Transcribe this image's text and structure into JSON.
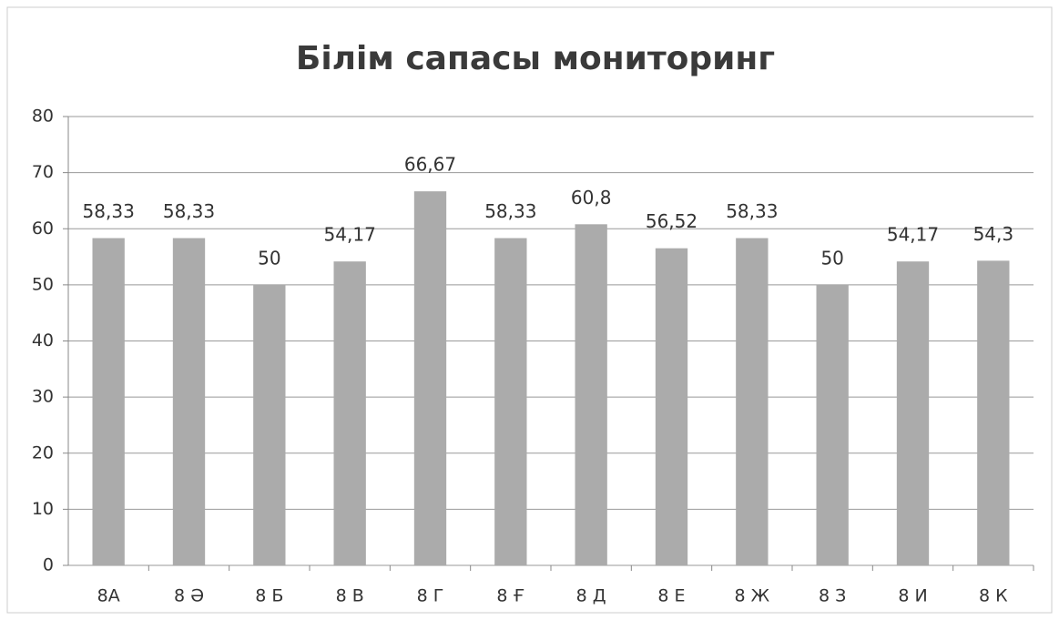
{
  "chart_data": {
    "type": "bar",
    "title": "Білім сапасы мониторинг",
    "categories": [
      "8А",
      "8 Ә",
      "8 Б",
      "8 В",
      "8 Г",
      "8 Ғ",
      "8 Д",
      "8 Е",
      "8 Ж",
      "8 З",
      "8 И",
      "8 К"
    ],
    "values": [
      58.33,
      58.33,
      50,
      54.17,
      66.67,
      58.33,
      60.8,
      56.52,
      58.33,
      50,
      54.17,
      54.3
    ],
    "value_labels": [
      "58,33",
      "58,33",
      "50",
      "54,17",
      "66,67",
      "58,33",
      "60,8",
      "56,52",
      "58,33",
      "50",
      "54,17",
      "54,3"
    ],
    "color": "#ababab",
    "ylim": [
      0,
      80
    ],
    "yticks": [
      0,
      10,
      20,
      30,
      40,
      50,
      60,
      70,
      80
    ],
    "grid": true
  }
}
